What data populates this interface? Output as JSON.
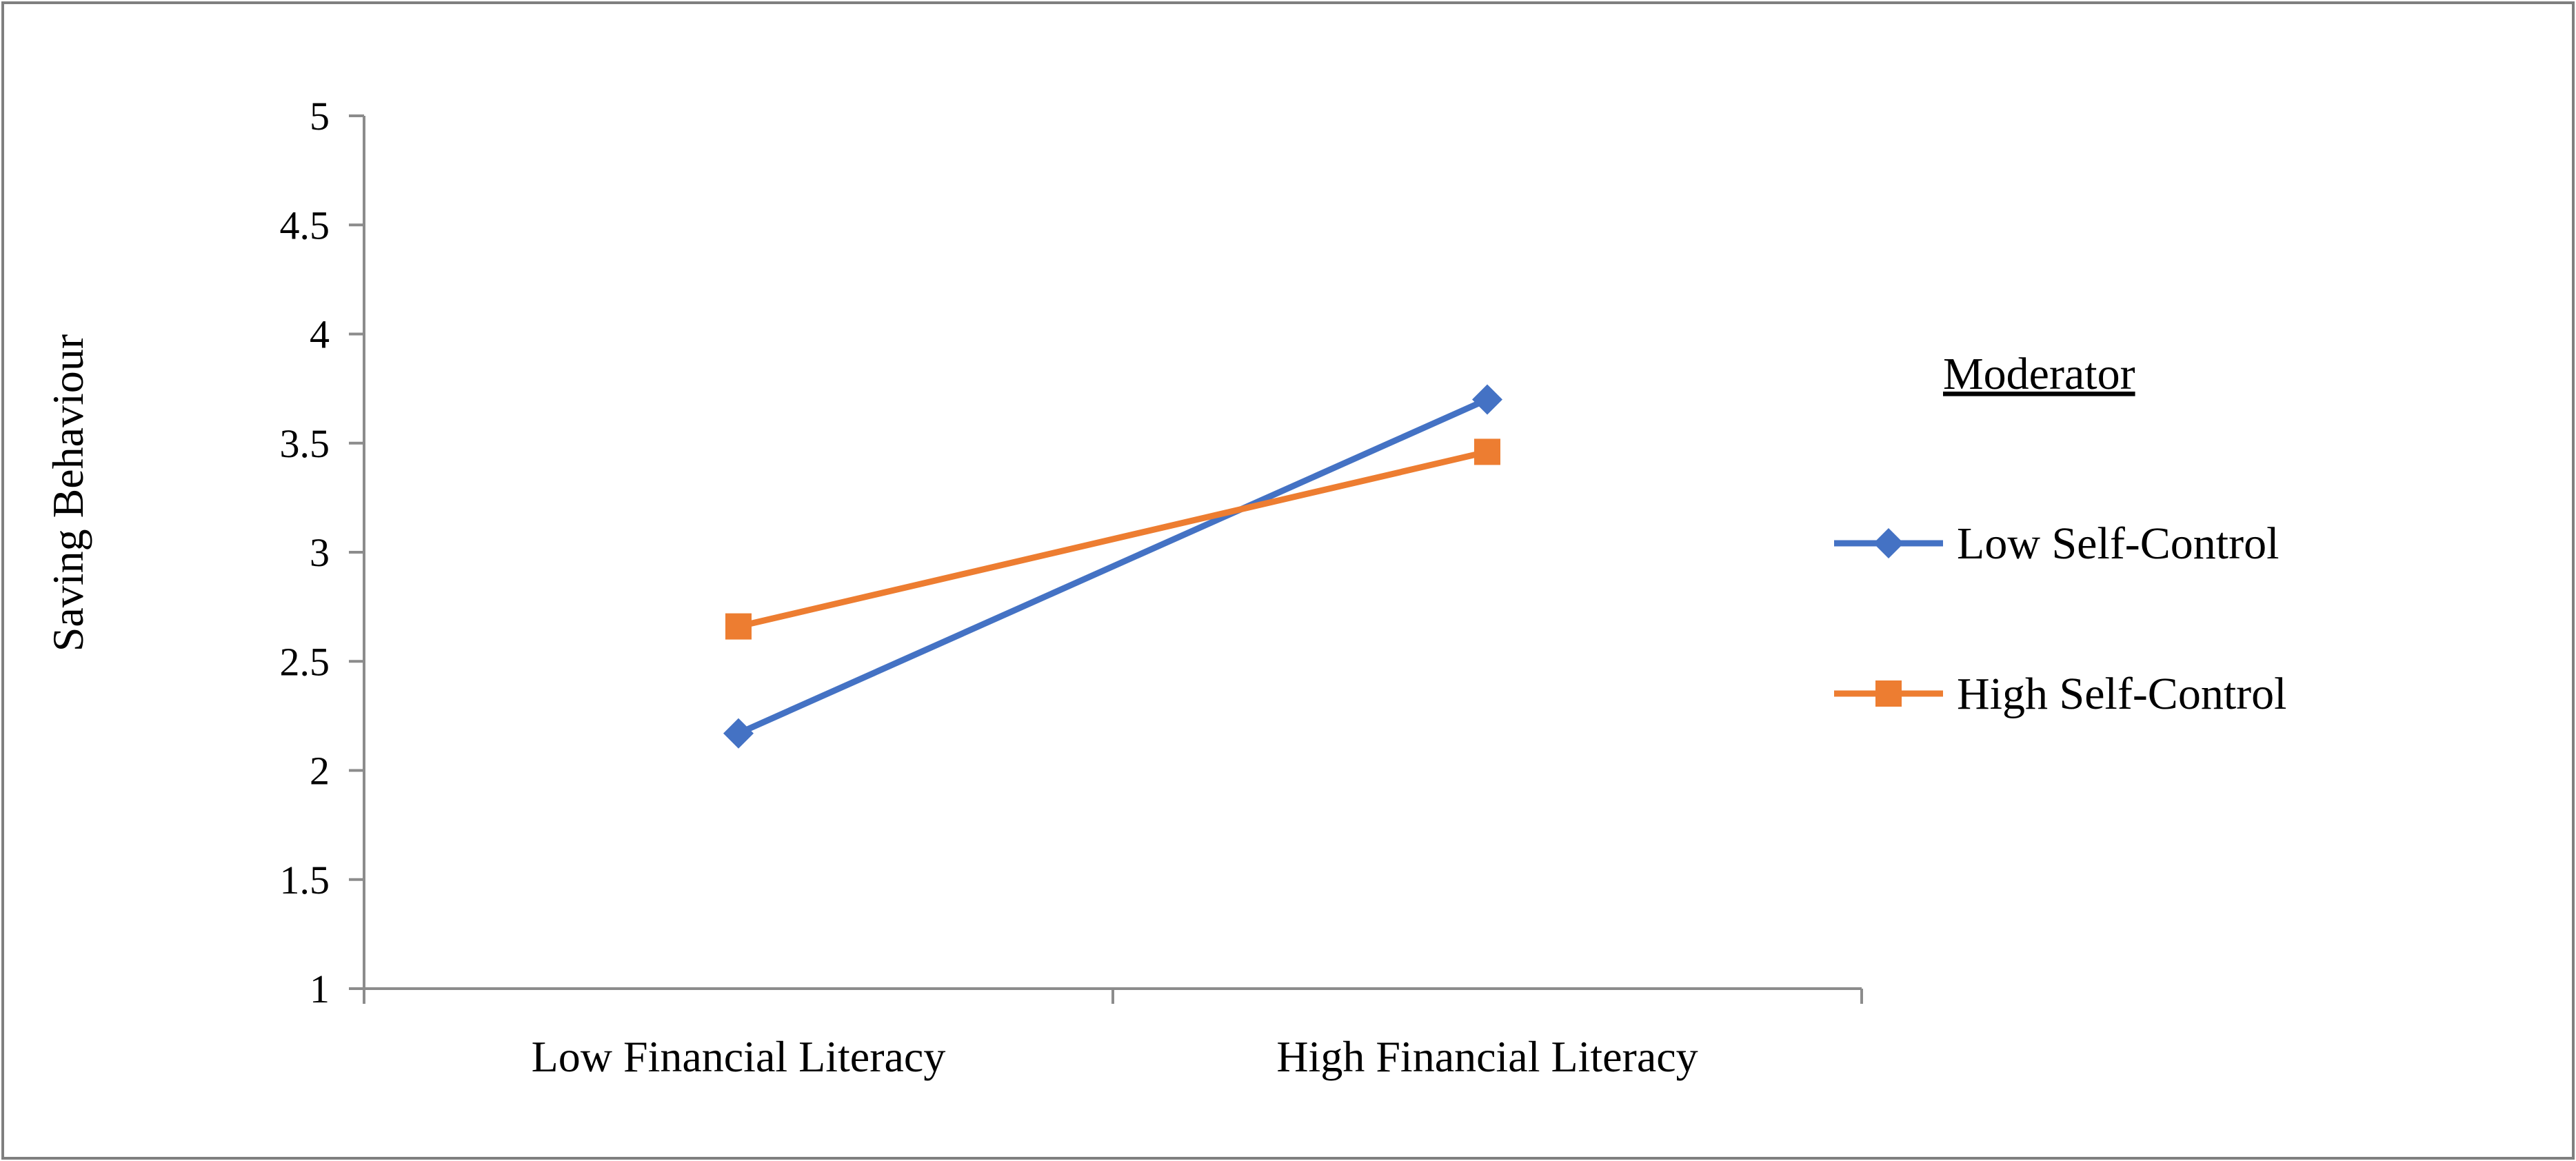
{
  "chart_data": {
    "type": "line",
    "title": "",
    "xlabel": "",
    "ylabel": "Saving Behaviour",
    "categories": [
      "Low Financial Literacy",
      "High Financial Literacy"
    ],
    "y_ticks": [
      "1",
      "1.5",
      "2",
      "2.5",
      "3",
      "3.5",
      "4",
      "4.5",
      "5"
    ],
    "ylim": [
      1,
      5
    ],
    "grid": false,
    "legend": {
      "title": "Moderator",
      "placement": "right"
    },
    "series": [
      {
        "name": "Low Self-Control",
        "values": [
          2.17,
          3.7
        ],
        "color": "#4472C4",
        "marker": "diamond"
      },
      {
        "name": "High Self-Control",
        "values": [
          2.66,
          3.46
        ],
        "color": "#ED7D31",
        "marker": "square"
      }
    ]
  }
}
